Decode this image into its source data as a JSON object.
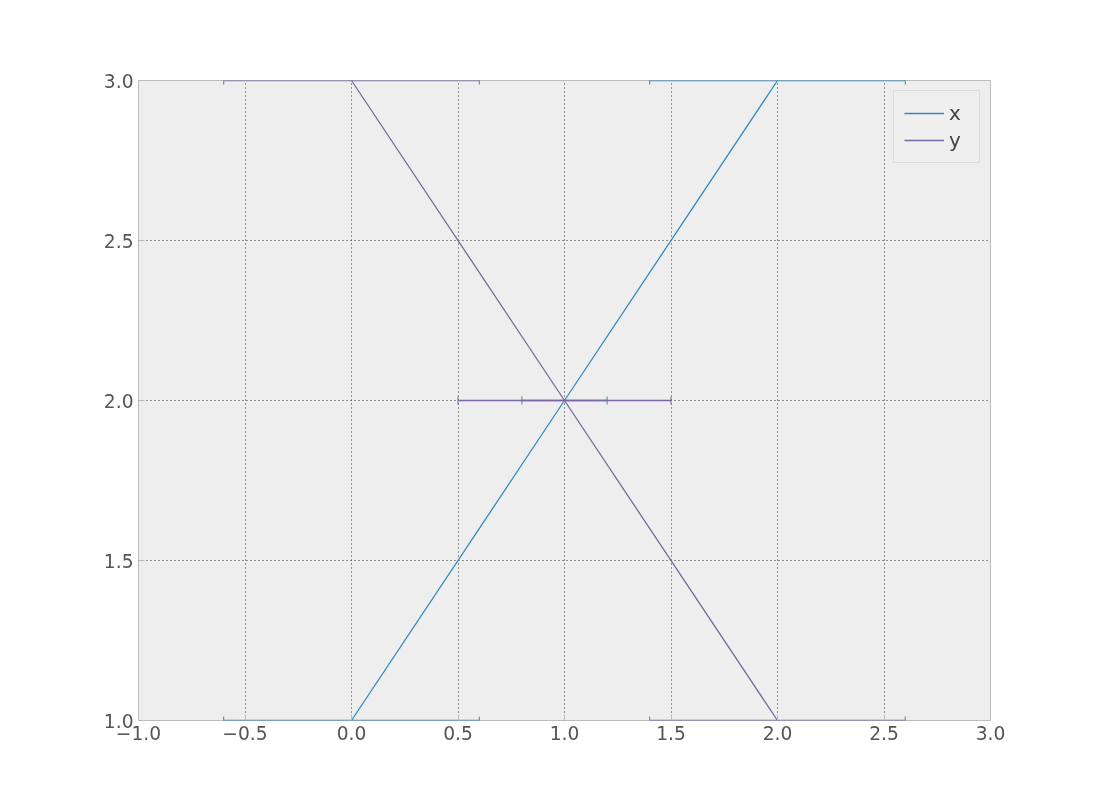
{
  "chart_data": {
    "type": "line",
    "x": [
      0,
      1,
      2
    ],
    "series": [
      {
        "name": "x",
        "color": "#348abd",
        "values": [
          1,
          2,
          3
        ],
        "xerrors": [
          0.6,
          0.2,
          0.6
        ]
      },
      {
        "name": "y",
        "color": "#7a68a6",
        "values": [
          3,
          2,
          1
        ],
        "xerrors": [
          0.6,
          0.5,
          0.6
        ]
      }
    ],
    "xlim": [
      -1.0,
      3.0
    ],
    "xticks": [
      {
        "value": -1,
        "label": "−1.0"
      },
      {
        "value": -0.5,
        "label": "−0.5"
      },
      {
        "value": 0,
        "label": "0.0"
      },
      {
        "value": 0.5,
        "label": "0.5"
      },
      {
        "value": 1,
        "label": "1.0"
      },
      {
        "value": 1.5,
        "label": "1.5"
      },
      {
        "value": 2,
        "label": "2.0"
      },
      {
        "value": 2.5,
        "label": "2.5"
      },
      {
        "value": 3,
        "label": "3.0"
      }
    ],
    "ylim": [
      1.0,
      3.0
    ],
    "yticks": [
      {
        "value": 1,
        "label": "1.0"
      },
      {
        "value": 1.5,
        "label": "1.5"
      },
      {
        "value": 2,
        "label": "2.0"
      },
      {
        "value": 2.5,
        "label": "2.5"
      },
      {
        "value": 3,
        "label": "3.0"
      }
    ],
    "grid": true,
    "legend": "top right",
    "marker": "none",
    "line_style": "solid"
  }
}
